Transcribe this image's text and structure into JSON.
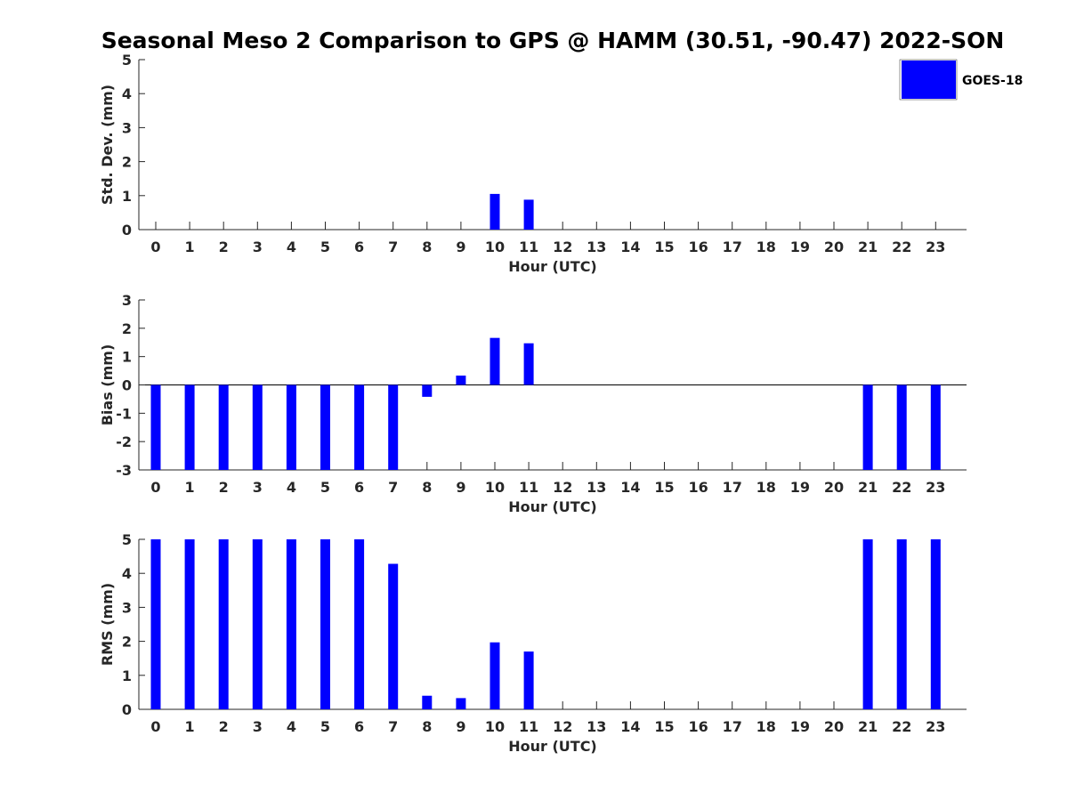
{
  "chart_data": {
    "type": "bar",
    "title": "Seasonal Meso 2 Comparison to GPS @ HAMM (30.51, -90.47) 2022-SON",
    "legend": {
      "entries": [
        "GOES-18"
      ],
      "placement": "top-right",
      "color": "#0000ff"
    },
    "categories": [
      "0",
      "1",
      "2",
      "3",
      "4",
      "5",
      "6",
      "7",
      "8",
      "9",
      "10",
      "11",
      "12",
      "13",
      "14",
      "15",
      "16",
      "17",
      "18",
      "19",
      "20",
      "21",
      "22",
      "23"
    ],
    "panels": [
      {
        "key": "std",
        "ylabel": "Std. Dev. (mm)",
        "xlabel": "Hour (UTC)",
        "ylim": [
          0,
          5
        ],
        "yticks": [
          "0",
          "1",
          "2",
          "3",
          "4",
          "5"
        ],
        "values": [
          0,
          0,
          0,
          0,
          0,
          0,
          0,
          0,
          0,
          0,
          1.05,
          0.88,
          0,
          0,
          0,
          0,
          0,
          0,
          0,
          0,
          0,
          0,
          0,
          0
        ]
      },
      {
        "key": "bias",
        "ylabel": "Bias (mm)",
        "xlabel": "Hour (UTC)",
        "ylim": [
          -3,
          3
        ],
        "yticks": [
          "-3",
          "-2",
          "-1",
          "0",
          "1",
          "2",
          "3"
        ],
        "values": [
          -3.2,
          -3.2,
          -3.2,
          -3.2,
          -3.2,
          -3.2,
          -3.2,
          -3.2,
          -0.42,
          0.33,
          1.66,
          1.47,
          0,
          0,
          0,
          0,
          0,
          0,
          0,
          0,
          0,
          -3.2,
          -3.2,
          -3.2
        ]
      },
      {
        "key": "rms",
        "ylabel": "RMS (mm)",
        "xlabel": "Hour (UTC)",
        "ylim": [
          0,
          5
        ],
        "yticks": [
          "0",
          "1",
          "2",
          "3",
          "4",
          "5"
        ],
        "values": [
          5.2,
          5.2,
          5.2,
          5.2,
          5.2,
          5.2,
          5.2,
          4.28,
          0.4,
          0.33,
          1.97,
          1.7,
          0,
          0,
          0,
          0,
          0,
          0,
          0,
          0,
          0,
          5.2,
          5.2,
          5.2
        ]
      }
    ]
  }
}
